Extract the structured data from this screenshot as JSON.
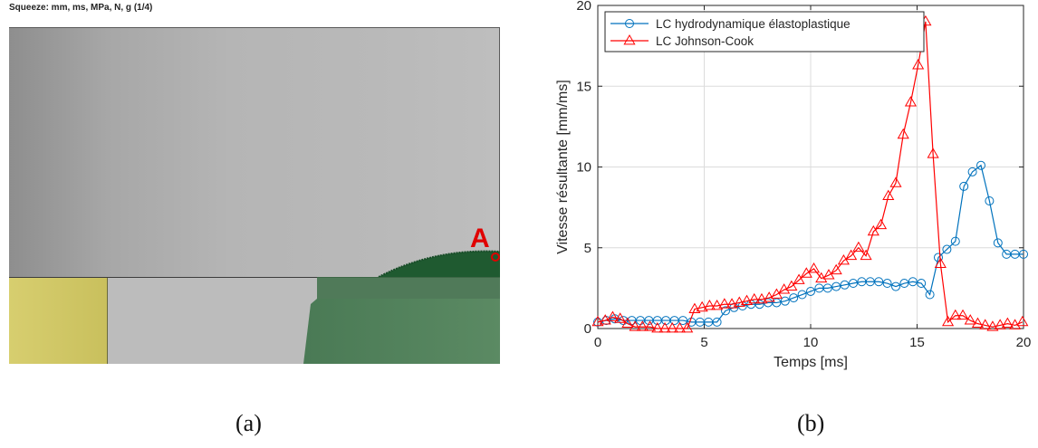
{
  "panel_a": {
    "header": "Squeeze: mm, ms, MPa, N, g (1/4)",
    "marker_label": "A",
    "caption": "(a)"
  },
  "panel_b": {
    "caption": "(b)"
  },
  "colors": {
    "series_hydro": "#0072BD",
    "series_jc": "#FF0000",
    "green_material": "#4b7c56",
    "green_dark": "#1f5a30",
    "marker_a": "#e00000"
  },
  "chart_data": {
    "type": "line",
    "title": "",
    "xlabel": "Temps [ms]",
    "ylabel": "Vitesse résultante [mm/ms]",
    "xlim": [
      0,
      20
    ],
    "ylim": [
      0,
      20
    ],
    "xticks": [
      0,
      5,
      10,
      15,
      20
    ],
    "yticks": [
      0,
      5,
      10,
      15,
      20
    ],
    "grid": true,
    "legend_position": "top-left",
    "series": [
      {
        "name": "LC hydrodynamique élastoplastique",
        "marker": "circle",
        "x": [
          0,
          0.4,
          0.8,
          1.2,
          1.6,
          2.0,
          2.4,
          2.8,
          3.2,
          3.6,
          4.0,
          4.4,
          4.8,
          5.2,
          5.6,
          6.0,
          6.4,
          6.8,
          7.2,
          7.6,
          8.0,
          8.4,
          8.8,
          9.2,
          9.6,
          10.0,
          10.4,
          10.8,
          11.2,
          11.6,
          12.0,
          12.4,
          12.8,
          13.2,
          13.6,
          14.0,
          14.4,
          14.8,
          15.2,
          15.6,
          16.0,
          16.4,
          16.8,
          17.2,
          17.6,
          18.0,
          18.4,
          18.8,
          19.2,
          19.6,
          20.0
        ],
        "y": [
          0.4,
          0.5,
          0.6,
          0.5,
          0.5,
          0.5,
          0.5,
          0.5,
          0.5,
          0.5,
          0.5,
          0.4,
          0.4,
          0.4,
          0.4,
          1.1,
          1.3,
          1.4,
          1.5,
          1.5,
          1.6,
          1.6,
          1.7,
          1.9,
          2.1,
          2.3,
          2.5,
          2.5,
          2.6,
          2.7,
          2.8,
          2.9,
          2.9,
          2.9,
          2.8,
          2.6,
          2.8,
          2.9,
          2.8,
          2.1,
          4.4,
          4.9,
          5.4,
          8.8,
          9.7,
          10.1,
          7.9,
          5.3,
          4.6,
          4.6,
          4.6
        ]
      },
      {
        "name": "LC Johnson-Cook",
        "marker": "triangle",
        "x": [
          0,
          0.35,
          0.7,
          1.05,
          1.4,
          1.75,
          2.1,
          2.45,
          2.8,
          3.15,
          3.5,
          3.85,
          4.2,
          4.55,
          4.9,
          5.25,
          5.6,
          5.95,
          6.3,
          6.65,
          7.0,
          7.35,
          7.7,
          8.05,
          8.4,
          8.75,
          9.1,
          9.45,
          9.8,
          10.15,
          10.5,
          10.85,
          11.2,
          11.55,
          11.9,
          12.25,
          12.6,
          12.95,
          13.3,
          13.65,
          14.0,
          14.35,
          14.7,
          15.05,
          15.4,
          15.75,
          16.1,
          16.45,
          16.8,
          17.15,
          17.5,
          17.85,
          18.2,
          18.55,
          18.9,
          19.25,
          19.6,
          19.95
        ],
        "y": [
          0.4,
          0.5,
          0.7,
          0.6,
          0.3,
          0.1,
          0.1,
          0.1,
          0.0,
          0.0,
          0.0,
          0.0,
          0.0,
          1.2,
          1.3,
          1.4,
          1.4,
          1.5,
          1.5,
          1.6,
          1.7,
          1.8,
          1.8,
          1.9,
          2.1,
          2.4,
          2.6,
          3.0,
          3.4,
          3.7,
          3.1,
          3.3,
          3.6,
          4.2,
          4.5,
          5.0,
          4.5,
          6.0,
          6.4,
          8.2,
          9.0,
          12.0,
          14.0,
          16.3,
          19.0,
          10.8,
          4.0,
          0.4,
          0.8,
          0.8,
          0.5,
          0.3,
          0.2,
          0.1,
          0.2,
          0.3,
          0.2,
          0.4
        ]
      }
    ]
  }
}
